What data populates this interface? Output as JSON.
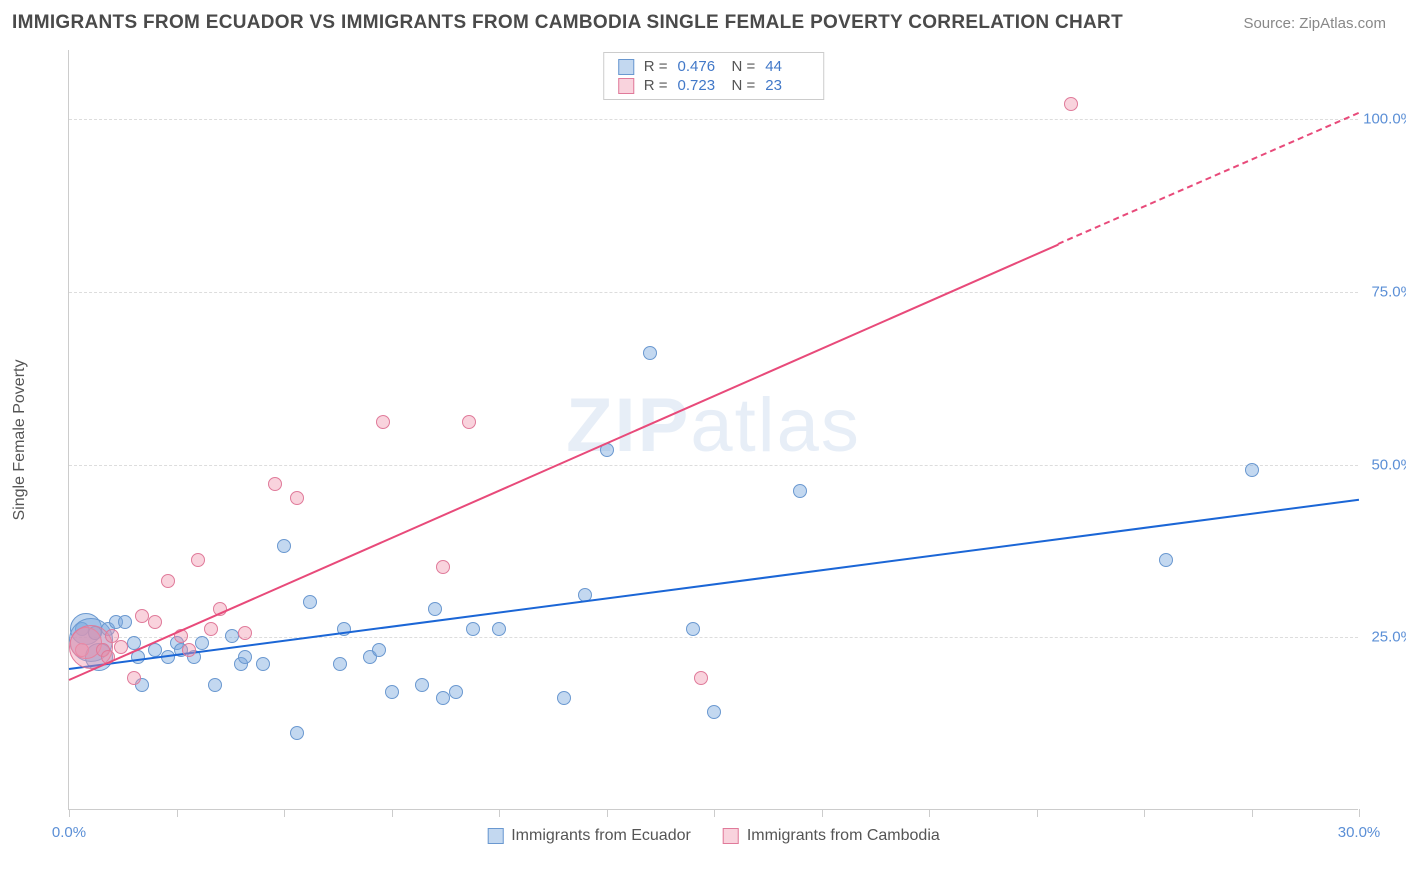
{
  "title": "IMMIGRANTS FROM ECUADOR VS IMMIGRANTS FROM CAMBODIA SINGLE FEMALE POVERTY CORRELATION CHART",
  "source": "Source: ZipAtlas.com",
  "watermark_1": "ZIP",
  "watermark_2": "atlas",
  "chart": {
    "type": "scatter",
    "y_axis_title": "Single Female Poverty",
    "xlim": [
      0,
      30
    ],
    "ylim": [
      0,
      110
    ],
    "x_ticks": [
      0,
      2.5,
      5,
      7.5,
      10,
      12.5,
      15,
      17.5,
      20,
      22.5,
      25,
      27.5,
      30
    ],
    "x_labels": [
      {
        "v": 0,
        "t": "0.0%"
      },
      {
        "v": 30,
        "t": "30.0%"
      }
    ],
    "y_gridlines": [
      25,
      50,
      75,
      100
    ],
    "y_labels": [
      {
        "v": 25,
        "t": "25.0%"
      },
      {
        "v": 50,
        "t": "50.0%"
      },
      {
        "v": 75,
        "t": "75.0%"
      },
      {
        "v": 100,
        "t": "100.0%"
      }
    ],
    "background_color": "#ffffff",
    "grid_color": "#dddddd",
    "axis_color": "#cccccc",
    "tick_label_color": "#5b8fd6",
    "axis_title_color": "#555555",
    "series": [
      {
        "key": "ecuador",
        "label": "Immigrants from Ecuador",
        "fill_color": "rgba(122, 168, 222, 0.45)",
        "stroke_color": "#6a98d0",
        "line_color": "#1b66d6",
        "r_stat": "0.476",
        "n_stat": "44",
        "trend": {
          "x1": 0,
          "y1": 20.5,
          "x2": 30,
          "y2": 45
        },
        "points": [
          {
            "x": 0.3,
            "y": 26,
            "r": 7
          },
          {
            "x": 0.4,
            "y": 26,
            "r": 16
          },
          {
            "x": 0.5,
            "y": 24.5,
            "r": 22
          },
          {
            "x": 0.6,
            "y": 25.5,
            "r": 7
          },
          {
            "x": 0.7,
            "y": 22,
            "r": 14
          },
          {
            "x": 0.9,
            "y": 26,
            "r": 7
          },
          {
            "x": 1.1,
            "y": 27,
            "r": 7
          },
          {
            "x": 1.3,
            "y": 27,
            "r": 7
          },
          {
            "x": 1.5,
            "y": 24,
            "r": 7
          },
          {
            "x": 1.6,
            "y": 22,
            "r": 7
          },
          {
            "x": 1.7,
            "y": 18,
            "r": 7
          },
          {
            "x": 2.0,
            "y": 23,
            "r": 7
          },
          {
            "x": 2.3,
            "y": 22,
            "r": 7
          },
          {
            "x": 2.5,
            "y": 24,
            "r": 7
          },
          {
            "x": 2.6,
            "y": 23,
            "r": 7
          },
          {
            "x": 2.9,
            "y": 22,
            "r": 7
          },
          {
            "x": 3.1,
            "y": 24,
            "r": 7
          },
          {
            "x": 3.4,
            "y": 18,
            "r": 7
          },
          {
            "x": 3.8,
            "y": 25,
            "r": 7
          },
          {
            "x": 4.0,
            "y": 21,
            "r": 7
          },
          {
            "x": 4.1,
            "y": 22,
            "r": 7
          },
          {
            "x": 4.5,
            "y": 21,
            "r": 7
          },
          {
            "x": 5.0,
            "y": 38,
            "r": 7
          },
          {
            "x": 5.3,
            "y": 11,
            "r": 7
          },
          {
            "x": 5.6,
            "y": 30,
            "r": 7
          },
          {
            "x": 6.3,
            "y": 21,
            "r": 7
          },
          {
            "x": 6.4,
            "y": 26,
            "r": 7
          },
          {
            "x": 7.0,
            "y": 22,
            "r": 7
          },
          {
            "x": 7.2,
            "y": 23,
            "r": 7
          },
          {
            "x": 7.5,
            "y": 17,
            "r": 7
          },
          {
            "x": 8.2,
            "y": 18,
            "r": 7
          },
          {
            "x": 8.5,
            "y": 29,
            "r": 7
          },
          {
            "x": 8.7,
            "y": 16,
            "r": 7
          },
          {
            "x": 9.0,
            "y": 17,
            "r": 7
          },
          {
            "x": 9.4,
            "y": 26,
            "r": 7
          },
          {
            "x": 10.0,
            "y": 26,
            "r": 7
          },
          {
            "x": 11.5,
            "y": 16,
            "r": 7
          },
          {
            "x": 12.0,
            "y": 31,
            "r": 7
          },
          {
            "x": 12.5,
            "y": 52,
            "r": 7
          },
          {
            "x": 13.5,
            "y": 66,
            "r": 7
          },
          {
            "x": 14.5,
            "y": 26,
            "r": 7
          },
          {
            "x": 15.0,
            "y": 14,
            "r": 7
          },
          {
            "x": 17.0,
            "y": 46,
            "r": 7
          },
          {
            "x": 25.5,
            "y": 36,
            "r": 7
          },
          {
            "x": 27.5,
            "y": 49,
            "r": 7
          }
        ]
      },
      {
        "key": "cambodia",
        "label": "Immigrants from Cambodia",
        "fill_color": "rgba(240, 145, 170, 0.4)",
        "stroke_color": "#e07a9a",
        "line_color": "#e84a7a",
        "r_stat": "0.723",
        "n_stat": "23",
        "trend": {
          "x1": 0,
          "y1": 19,
          "x2": 23,
          "y2": 82
        },
        "trend_dash": {
          "x1": 23,
          "y1": 82,
          "x2": 30,
          "y2": 101
        },
        "points": [
          {
            "x": 0.3,
            "y": 23,
            "r": 7
          },
          {
            "x": 0.4,
            "y": 24,
            "r": 16
          },
          {
            "x": 0.5,
            "y": 23.5,
            "r": 22
          },
          {
            "x": 0.8,
            "y": 23,
            "r": 7
          },
          {
            "x": 0.9,
            "y": 22,
            "r": 7
          },
          {
            "x": 1.0,
            "y": 25,
            "r": 7
          },
          {
            "x": 1.2,
            "y": 23.5,
            "r": 7
          },
          {
            "x": 1.5,
            "y": 19,
            "r": 7
          },
          {
            "x": 1.7,
            "y": 28,
            "r": 7
          },
          {
            "x": 2.0,
            "y": 27,
            "r": 7
          },
          {
            "x": 2.3,
            "y": 33,
            "r": 7
          },
          {
            "x": 2.6,
            "y": 25,
            "r": 7
          },
          {
            "x": 2.8,
            "y": 23,
            "r": 7
          },
          {
            "x": 3.0,
            "y": 36,
            "r": 7
          },
          {
            "x": 3.3,
            "y": 26,
            "r": 7
          },
          {
            "x": 3.5,
            "y": 29,
            "r": 7
          },
          {
            "x": 4.1,
            "y": 25.5,
            "r": 7
          },
          {
            "x": 4.8,
            "y": 47,
            "r": 7
          },
          {
            "x": 5.3,
            "y": 45,
            "r": 7
          },
          {
            "x": 7.3,
            "y": 56,
            "r": 7
          },
          {
            "x": 8.7,
            "y": 35,
            "r": 7
          },
          {
            "x": 9.3,
            "y": 56,
            "r": 7
          },
          {
            "x": 14.7,
            "y": 19,
            "r": 7
          },
          {
            "x": 23.3,
            "y": 102,
            "r": 7
          }
        ]
      }
    ],
    "legend_top_labels": {
      "R": "R =",
      "N": "N ="
    }
  }
}
